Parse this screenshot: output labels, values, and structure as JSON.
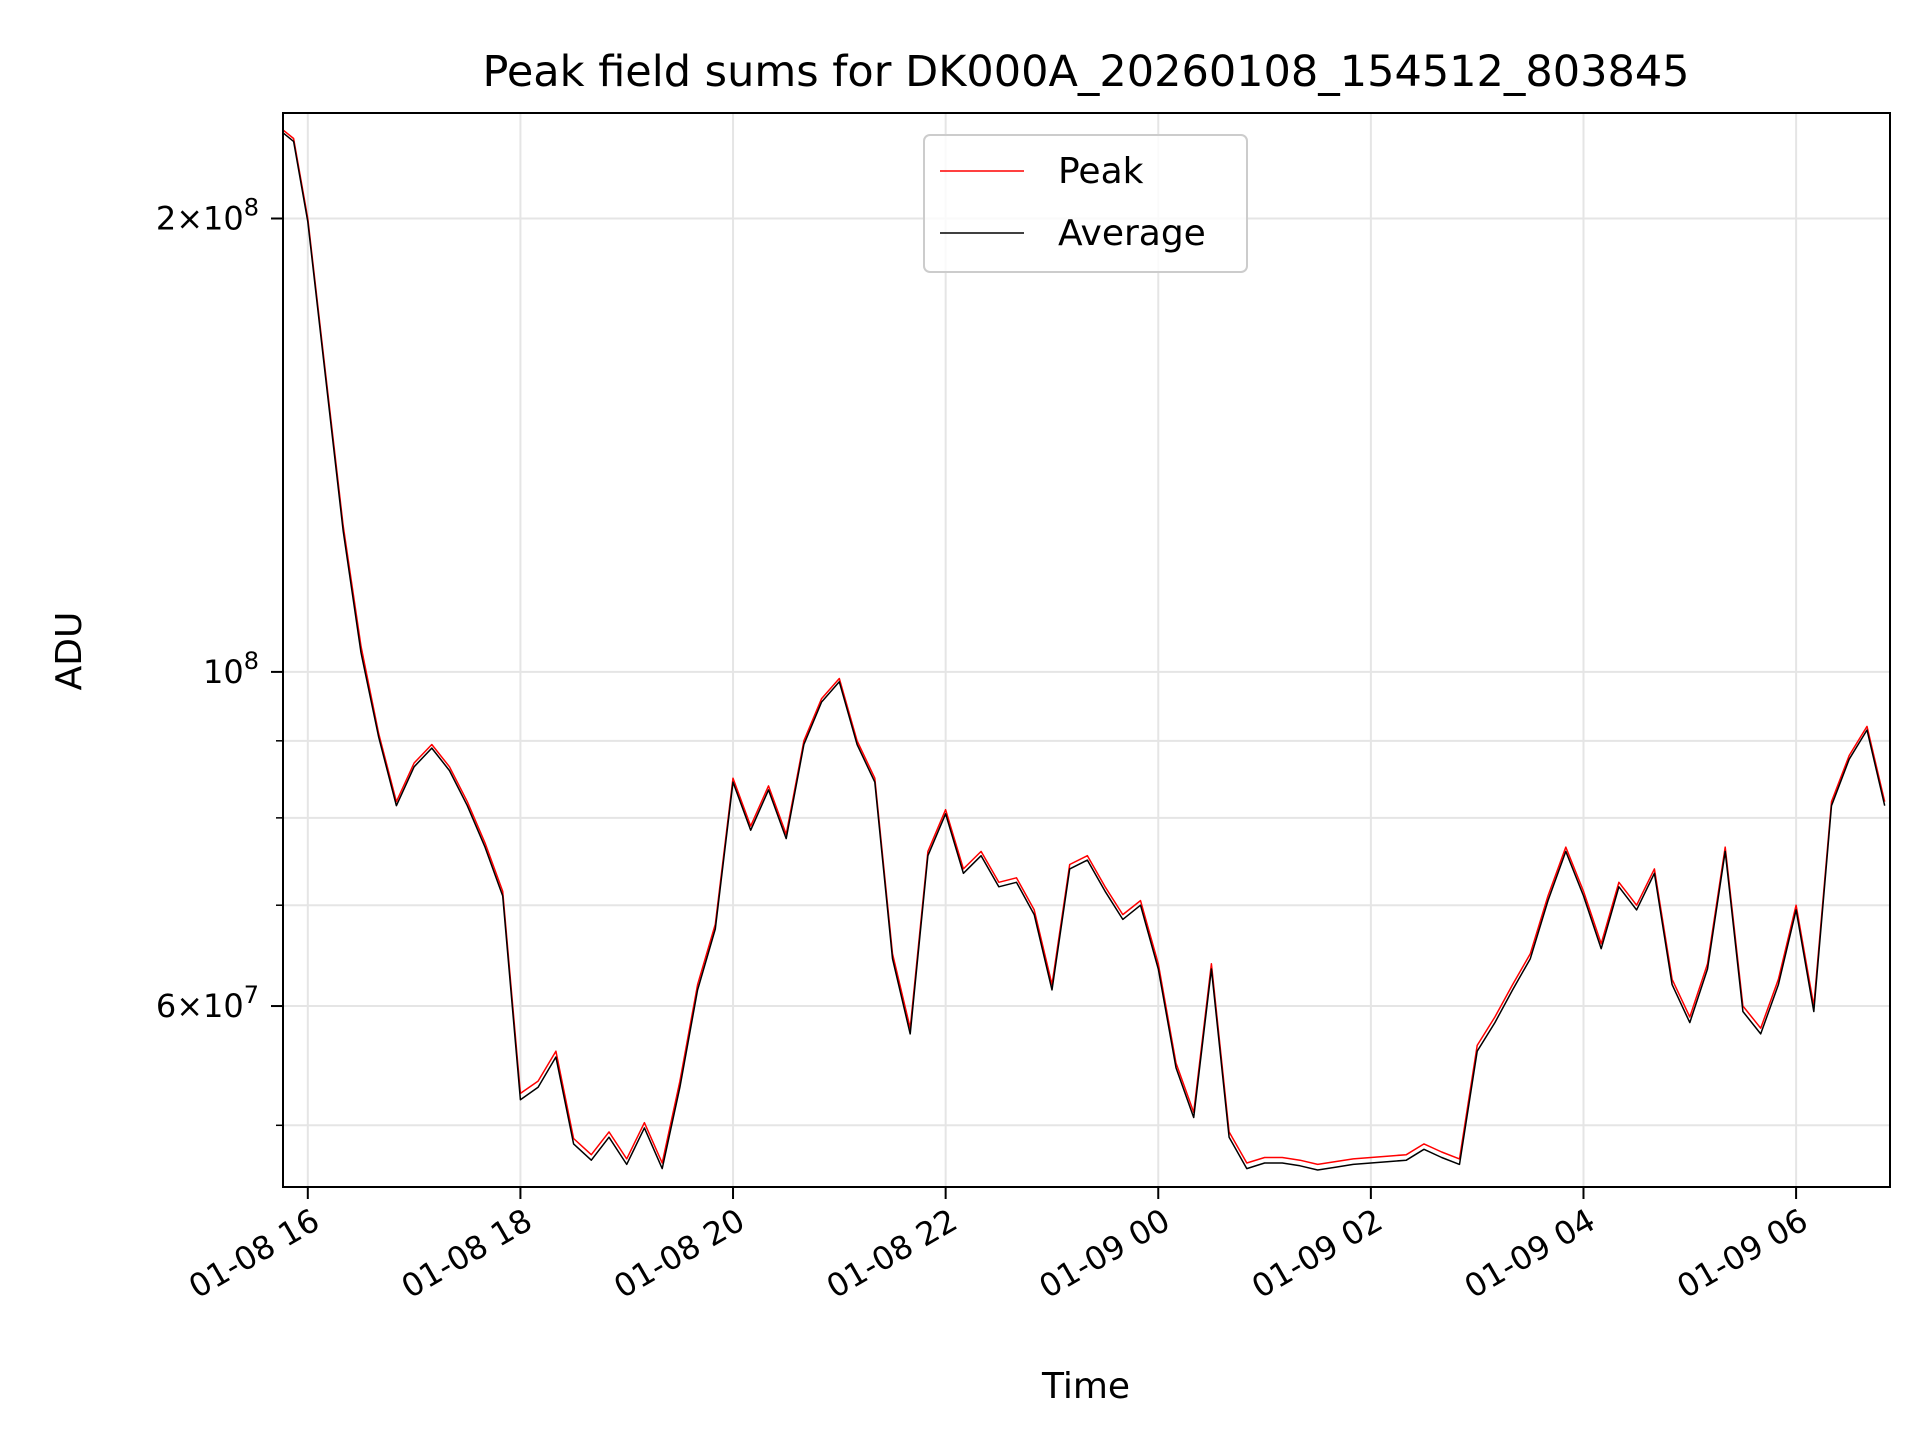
{
  "chart_data": {
    "type": "line",
    "title": "Peak field sums for DK000A_20260108_154512_803845",
    "xlabel": "Time",
    "ylabel": "ADU",
    "yscale": "log",
    "xlim": [
      "01-08 15:46",
      "01-09 06:53"
    ],
    "ylim": [
      45500000,
      235000000
    ],
    "grid": true,
    "legend": {
      "placement": "top-center",
      "entries": [
        "Peak",
        "Average"
      ]
    },
    "x_ticks": [
      "01-08 16",
      "01-08 18",
      "01-08 20",
      "01-08 22",
      "01-09 00",
      "01-09 02",
      "01-09 04",
      "01-09 06"
    ],
    "y_ticks": [
      {
        "base": "2",
        "exp": "8",
        "value": 200000000
      },
      {
        "base": "10",
        "exp": "8",
        "value": 100000000
      },
      {
        "base": "6",
        "exp": "7",
        "value": 60000000
      }
    ],
    "minor_y_ticks": [
      50000000,
      70000000,
      80000000,
      90000000
    ],
    "colors": {
      "Peak": "#ff0000",
      "Average": "#000000"
    },
    "x": [
      "01-08 15:46",
      "01-08 15:52",
      "01-08 16:00",
      "01-08 16:10",
      "01-08 16:20",
      "01-08 16:30",
      "01-08 16:40",
      "01-08 16:50",
      "01-08 17:00",
      "01-08 17:10",
      "01-08 17:20",
      "01-08 17:30",
      "01-08 17:40",
      "01-08 17:50",
      "01-08 18:00",
      "01-08 18:10",
      "01-08 18:20",
      "01-08 18:30",
      "01-08 18:40",
      "01-08 18:50",
      "01-08 19:00",
      "01-08 19:10",
      "01-08 19:20",
      "01-08 19:30",
      "01-08 19:40",
      "01-08 19:50",
      "01-08 20:00",
      "01-08 20:10",
      "01-08 20:20",
      "01-08 20:30",
      "01-08 20:40",
      "01-08 20:50",
      "01-08 21:00",
      "01-08 21:10",
      "01-08 21:20",
      "01-08 21:30",
      "01-08 21:40",
      "01-08 21:50",
      "01-08 22:00",
      "01-08 22:10",
      "01-08 22:20",
      "01-08 22:30",
      "01-08 22:40",
      "01-08 22:50",
      "01-08 23:00",
      "01-08 23:10",
      "01-08 23:20",
      "01-08 23:30",
      "01-08 23:40",
      "01-08 23:50",
      "01-09 00:00",
      "01-09 00:10",
      "01-09 00:20",
      "01-09 00:30",
      "01-09 00:40",
      "01-09 00:50",
      "01-09 01:00",
      "01-09 01:10",
      "01-09 01:20",
      "01-09 01:30",
      "01-09 01:40",
      "01-09 01:50",
      "01-09 02:00",
      "01-09 02:10",
      "01-09 02:20",
      "01-09 02:30",
      "01-09 02:40",
      "01-09 02:50",
      "01-09 03:00",
      "01-09 03:10",
      "01-09 03:20",
      "01-09 03:30",
      "01-09 03:40",
      "01-09 03:50",
      "01-09 04:00",
      "01-09 04:10",
      "01-09 04:20",
      "01-09 04:30",
      "01-09 04:40",
      "01-09 04:50",
      "01-09 05:00",
      "01-09 05:10",
      "01-09 05:20",
      "01-09 05:30",
      "01-09 05:40",
      "01-09 05:50",
      "01-09 06:00",
      "01-09 06:10",
      "01-09 06:20",
      "01-09 06:30",
      "01-09 06:40",
      "01-09 06:50"
    ],
    "series": [
      {
        "name": "Peak",
        "values": [
          229000000,
          226000000,
          200000000,
          158000000,
          125000000,
          104000000,
          91000000,
          82000000,
          87000000,
          89500000,
          86500000,
          82000000,
          77000000,
          71500000,
          52500000,
          53500000,
          56000000,
          49000000,
          47800000,
          49500000,
          47500000,
          50200000,
          47200000,
          53500000,
          62000000,
          68000000,
          85000000,
          79000000,
          84000000,
          78000000,
          90000000,
          96000000,
          99000000,
          90000000,
          85000000,
          65000000,
          58000000,
          76000000,
          81000000,
          74000000,
          76000000,
          72500000,
          73000000,
          69500000,
          62000000,
          74500000,
          75500000,
          72000000,
          69000000,
          70500000,
          64000000,
          55000000,
          51000000,
          64000000,
          49500000,
          47200000,
          47600000,
          47600000,
          47400000,
          47100000,
          47300000,
          47500000,
          47600000,
          47700000,
          47800000,
          48600000,
          48000000,
          47500000,
          56500000,
          59000000,
          62000000,
          65000000,
          71000000,
          76500000,
          71500000,
          66000000,
          72500000,
          70000000,
          74000000,
          62500000,
          59000000,
          64000000,
          76500000,
          60000000,
          58000000,
          62500000,
          70000000,
          60000000,
          82000000,
          88000000,
          92000000,
          82000000
        ]
      },
      {
        "name": "Average",
        "values": [
          228000000,
          225000000,
          199000000,
          157000000,
          124000000,
          103000000,
          90500000,
          81500000,
          86500000,
          89000000,
          86000000,
          81500000,
          76500000,
          71000000,
          52000000,
          53000000,
          55500000,
          48600000,
          47400000,
          49100000,
          47100000,
          49800000,
          46800000,
          53000000,
          61500000,
          67500000,
          84500000,
          78500000,
          83500000,
          77500000,
          89500000,
          95500000,
          98500000,
          89500000,
          84500000,
          64500000,
          57500000,
          75500000,
          80500000,
          73500000,
          75500000,
          72000000,
          72500000,
          69000000,
          61500000,
          74000000,
          75000000,
          71500000,
          68500000,
          70000000,
          63500000,
          54600000,
          50600000,
          63500000,
          49100000,
          46800000,
          47200000,
          47200000,
          47000000,
          46700000,
          46900000,
          47100000,
          47200000,
          47300000,
          47400000,
          48200000,
          47600000,
          47100000,
          56000000,
          58500000,
          61500000,
          64500000,
          70500000,
          76000000,
          71000000,
          65500000,
          72000000,
          69500000,
          73500000,
          62000000,
          58500000,
          63500000,
          76000000,
          59500000,
          57500000,
          62000000,
          69500000,
          59500000,
          81500000,
          87500000,
          91500000,
          81500000
        ]
      }
    ]
  }
}
